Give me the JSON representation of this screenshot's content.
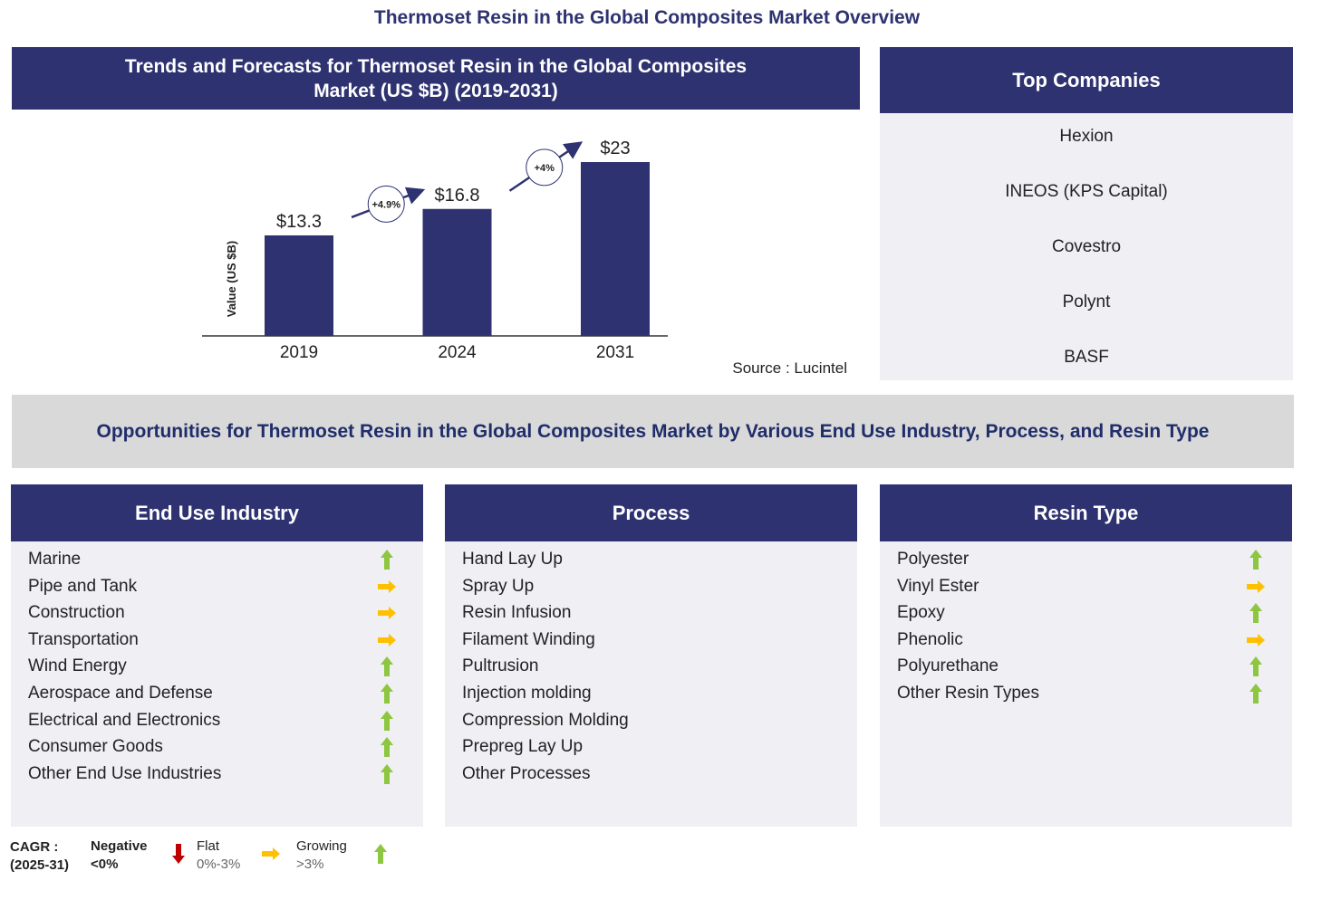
{
  "title": "Thermoset Resin in the Global Composites Market Overview",
  "chart_data": {
    "type": "bar",
    "title": "Trends and Forecasts for Thermoset Resin in the Global Composites Market (US $B) (2019-2031)",
    "y_label": "Value (US $B)",
    "categories": [
      "2019",
      "2024",
      "2031"
    ],
    "values": [
      13.3,
      16.8,
      23
    ],
    "value_labels": [
      "$13.3",
      "$16.8",
      "$23"
    ],
    "color": "#2e3270",
    "annotations": [
      "+4.9%",
      "+4%"
    ],
    "source": "Source : Lucintel"
  },
  "companies": {
    "title": "Top Companies",
    "items": [
      "Hexion",
      "INEOS (KPS Capital)",
      "Covestro",
      "Polynt",
      "BASF"
    ]
  },
  "opportunities_title": "Opportunities for Thermoset Resin in the Global Composites Market by Various End Use Industry, Process, and Resin Type",
  "segments": [
    {
      "title": "End Use Industry",
      "items": [
        {
          "name": "Marine",
          "trend": "growing"
        },
        {
          "name": "Pipe and Tank",
          "trend": "flat"
        },
        {
          "name": "Construction",
          "trend": "flat"
        },
        {
          "name": "Transportation",
          "trend": "flat"
        },
        {
          "name": "Wind Energy",
          "trend": "growing"
        },
        {
          "name": "Aerospace and Defense",
          "trend": "growing"
        },
        {
          "name": "Electrical and Electronics",
          "trend": "growing"
        },
        {
          "name": "Consumer Goods",
          "trend": "growing"
        },
        {
          "name": "Other End Use Industries",
          "trend": "growing"
        }
      ]
    },
    {
      "title": "Process",
      "items": [
        {
          "name": "Hand Lay Up"
        },
        {
          "name": "Spray Up"
        },
        {
          "name": "Resin Infusion"
        },
        {
          "name": "Filament Winding"
        },
        {
          "name": "Pultrusion"
        },
        {
          "name": "Injection molding"
        },
        {
          "name": "Compression Molding"
        },
        {
          "name": "Prepreg Lay Up"
        },
        {
          "name": "Other Processes"
        }
      ]
    },
    {
      "title": "Resin Type",
      "items": [
        {
          "name": "Polyester",
          "trend": "growing"
        },
        {
          "name": "Vinyl Ester",
          "trend": "flat"
        },
        {
          "name": "Epoxy",
          "trend": "growing"
        },
        {
          "name": "Phenolic",
          "trend": "flat"
        },
        {
          "name": "Polyurethane",
          "trend": "growing"
        },
        {
          "name": "Other Resin Types",
          "trend": "growing"
        }
      ]
    }
  ],
  "legend": {
    "label": "CAGR :",
    "period": "(2025-31)",
    "items": [
      {
        "name": "Negative",
        "range": "<0%",
        "trend": "negative"
      },
      {
        "name": "Flat",
        "range": "0%-3%",
        "trend": "flat"
      },
      {
        "name": "Growing",
        "range": ">3%",
        "trend": "growing"
      }
    ]
  }
}
